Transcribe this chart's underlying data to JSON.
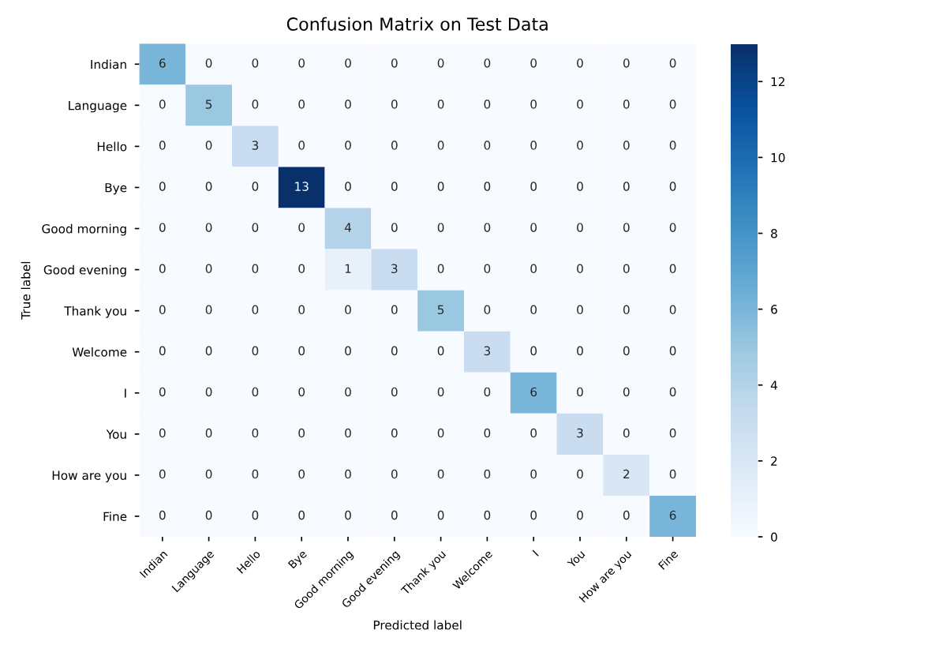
{
  "chart_data": {
    "type": "heatmap",
    "title": "Confusion Matrix on Test Data",
    "xlabel": "Predicted label",
    "ylabel": "True label",
    "categories": [
      "Indian",
      "Language",
      "Hello",
      "Bye",
      "Good morning",
      "Good evening",
      "Thank you",
      "Welcome",
      "I",
      "You",
      "How are you",
      "Fine"
    ],
    "y_categories": [
      "Indian",
      "Language",
      "Hello",
      "Bye",
      "Good morning",
      "Good evening",
      "Thank you",
      "Welcome",
      "I",
      "You",
      "How are you",
      "Fine"
    ],
    "cells": [
      [
        6,
        0,
        0,
        0,
        0,
        0,
        0,
        0,
        0,
        0,
        0,
        0
      ],
      [
        0,
        5,
        0,
        0,
        0,
        0,
        0,
        0,
        0,
        0,
        0,
        0
      ],
      [
        0,
        0,
        3,
        0,
        0,
        0,
        0,
        0,
        0,
        0,
        0,
        0
      ],
      [
        0,
        0,
        0,
        13,
        0,
        0,
        0,
        0,
        0,
        0,
        0,
        0
      ],
      [
        0,
        0,
        0,
        0,
        4,
        0,
        0,
        0,
        0,
        0,
        0,
        0
      ],
      [
        0,
        0,
        0,
        0,
        1,
        3,
        0,
        0,
        0,
        0,
        0,
        0
      ],
      [
        0,
        0,
        0,
        0,
        0,
        0,
        5,
        0,
        0,
        0,
        0,
        0
      ],
      [
        0,
        0,
        0,
        0,
        0,
        0,
        0,
        3,
        0,
        0,
        0,
        0
      ],
      [
        0,
        0,
        0,
        0,
        0,
        0,
        0,
        0,
        6,
        0,
        0,
        0
      ],
      [
        0,
        0,
        0,
        0,
        0,
        0,
        0,
        0,
        0,
        3,
        0,
        0
      ],
      [
        0,
        0,
        0,
        0,
        0,
        0,
        0,
        0,
        0,
        0,
        2,
        0
      ],
      [
        0,
        0,
        0,
        0,
        0,
        0,
        0,
        0,
        0,
        0,
        0,
        6
      ]
    ],
    "clim": [
      0,
      13
    ],
    "cticks": [
      0,
      2,
      4,
      6,
      8,
      10,
      12
    ],
    "data_labels": true
  }
}
